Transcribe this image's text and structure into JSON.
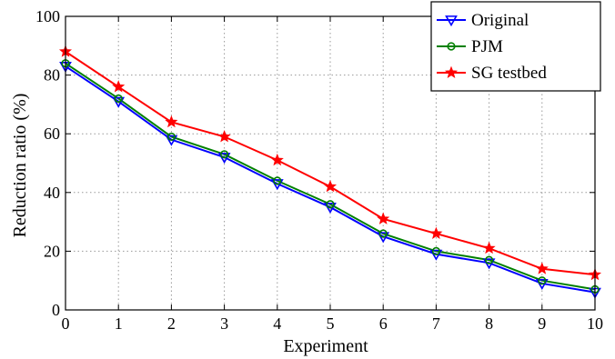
{
  "chart_data": {
    "type": "line",
    "title": "",
    "xlabel": "Experiment",
    "ylabel": "Reduction ratio (%)",
    "xlim": [
      0,
      10
    ],
    "ylim": [
      0,
      100
    ],
    "x_ticks": [
      "0",
      "1",
      "2",
      "3",
      "4",
      "5",
      "6",
      "7",
      "8",
      "9",
      "10"
    ],
    "y_ticks": [
      "0",
      "20",
      "40",
      "60",
      "80",
      "100"
    ],
    "grid": true,
    "grid_style": "dotted",
    "legend_position": "top-right",
    "x": [
      0,
      1,
      2,
      3,
      4,
      5,
      6,
      7,
      8,
      9,
      10
    ],
    "series": [
      {
        "name": "Original",
        "color": "#0000ff",
        "marker": "down-triangle",
        "values": [
          83,
          71,
          58,
          52,
          43,
          35,
          25,
          19,
          16,
          9,
          6
        ]
      },
      {
        "name": "PJM",
        "color": "#008000",
        "marker": "circle",
        "values": [
          84,
          72,
          59,
          53,
          44,
          36,
          26,
          20,
          17,
          10,
          7
        ]
      },
      {
        "name": "SG testbed",
        "color": "#ff0000",
        "marker": "star",
        "values": [
          88,
          76,
          64,
          59,
          51,
          42,
          31,
          26,
          21,
          14,
          12
        ]
      }
    ]
  }
}
